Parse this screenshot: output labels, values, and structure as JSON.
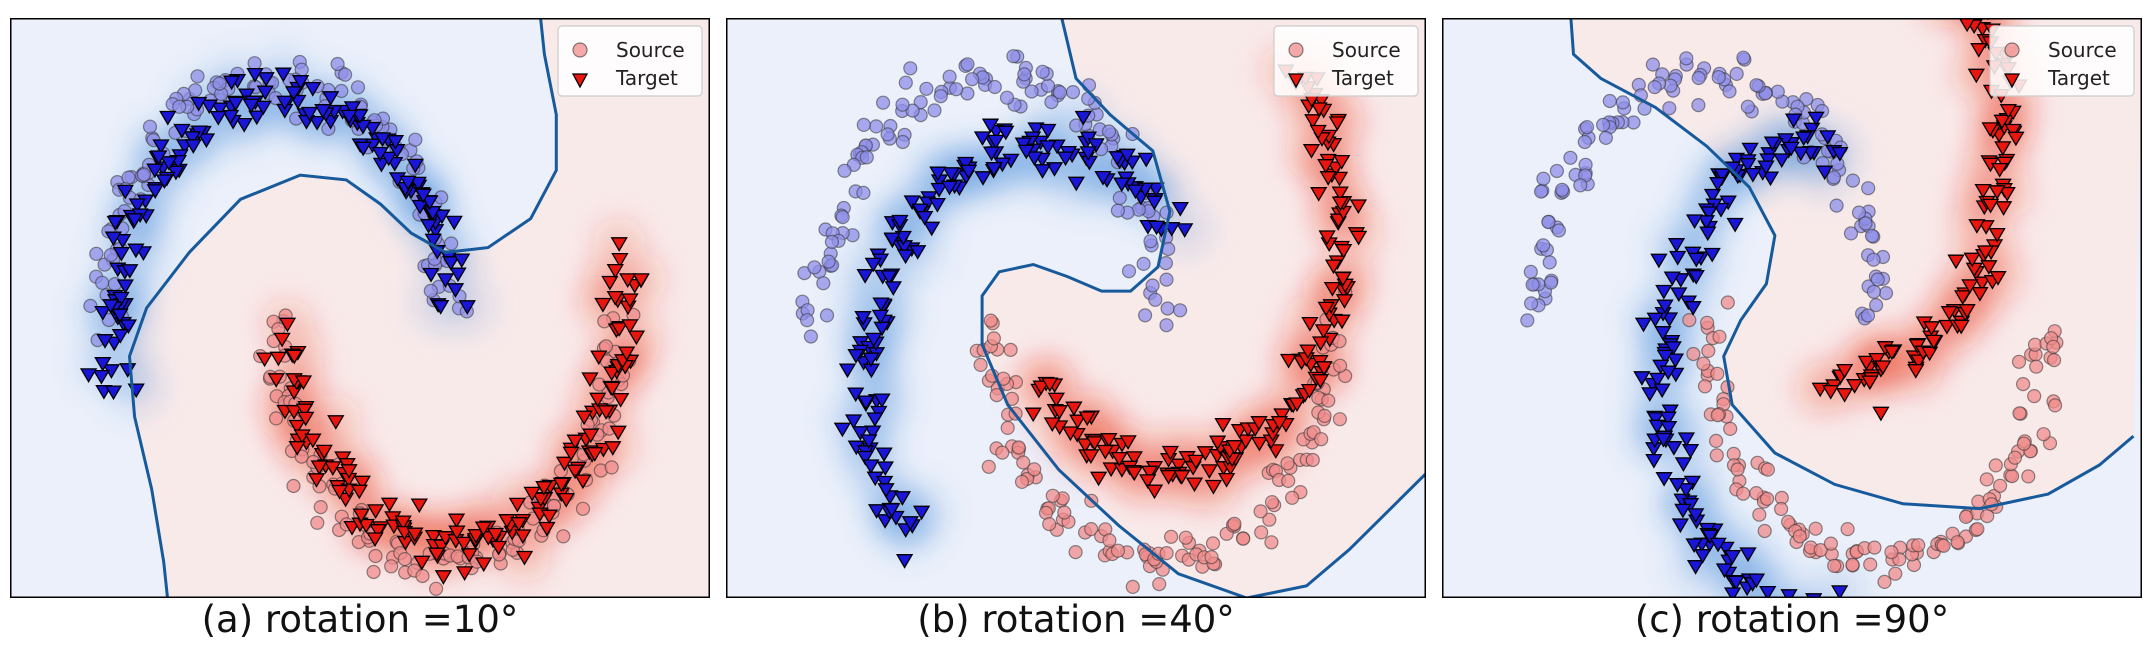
{
  "figure": {
    "captions": [
      "(a) rotation =10°",
      "(b) rotation =40°",
      "(c) rotation =90°"
    ]
  },
  "legend": {
    "source_label": "Source",
    "target_label": "Target"
  },
  "colors": {
    "source_class0": "#8f8fe8",
    "source_class1": "#f08c8c",
    "target_class0": "#1a16d8",
    "target_class1": "#e8160f",
    "decision_boundary": "#175a9c",
    "region_class0": "#ecf0fa",
    "region_class1": "#f9eaea",
    "density_class0": "#2b7fd1",
    "density_class1": "#e8200f"
  },
  "chart_data": [
    {
      "type": "scatter",
      "title": "(a) rotation =10°",
      "rotation_deg": 10,
      "xlabel": "",
      "ylabel": "",
      "axes_ticks": false,
      "xlim": [
        -1.55,
        2.55
      ],
      "ylim": [
        -1.15,
        1.25
      ],
      "legend_location": "top-right",
      "series": [
        {
          "name": "Source",
          "class": 0,
          "shape": "moon_upper",
          "marker": "circle"
        },
        {
          "name": "Source",
          "class": 1,
          "shape": "moon_lower",
          "marker": "circle"
        },
        {
          "name": "Target",
          "class": 0,
          "shape": "moon_upper_rotated",
          "marker": "triangle-down"
        },
        {
          "name": "Target",
          "class": 1,
          "shape": "moon_lower_rotated",
          "marker": "triangle-down"
        }
      ],
      "decision_boundary": [
        [
          1.55,
          1.3
        ],
        [
          1.58,
          1.1
        ],
        [
          1.65,
          0.85
        ],
        [
          1.65,
          0.62
        ],
        [
          1.5,
          0.42
        ],
        [
          1.25,
          0.3
        ],
        [
          1.0,
          0.28
        ],
        [
          0.8,
          0.36
        ],
        [
          0.62,
          0.48
        ],
        [
          0.42,
          0.58
        ],
        [
          0.15,
          0.6
        ],
        [
          -0.2,
          0.5
        ],
        [
          -0.5,
          0.28
        ],
        [
          -0.75,
          0.05
        ],
        [
          -0.85,
          -0.15
        ],
        [
          -0.82,
          -0.4
        ],
        [
          -0.72,
          -0.7
        ],
        [
          -0.65,
          -1.0
        ],
        [
          -0.62,
          -1.2
        ]
      ]
    },
    {
      "type": "scatter",
      "title": "(b) rotation =40°",
      "rotation_deg": 40,
      "xlabel": "",
      "ylabel": "",
      "axes_ticks": false,
      "xlim": [
        -1.55,
        2.55
      ],
      "ylim": [
        -1.15,
        1.25
      ],
      "legend_location": "top-right",
      "series": [
        {
          "name": "Source",
          "class": 0,
          "shape": "moon_upper",
          "marker": "circle"
        },
        {
          "name": "Source",
          "class": 1,
          "shape": "moon_lower",
          "marker": "circle"
        },
        {
          "name": "Target",
          "class": 0,
          "shape": "moon_upper_rotated",
          "marker": "triangle-down"
        },
        {
          "name": "Target",
          "class": 1,
          "shape": "moon_lower_rotated",
          "marker": "triangle-down"
        }
      ],
      "decision_boundary": [
        [
          0.4,
          1.3
        ],
        [
          0.5,
          1.0
        ],
        [
          0.7,
          0.85
        ],
        [
          0.95,
          0.7
        ],
        [
          1.05,
          0.45
        ],
        [
          0.98,
          0.22
        ],
        [
          0.82,
          0.12
        ],
        [
          0.65,
          0.12
        ],
        [
          0.45,
          0.18
        ],
        [
          0.25,
          0.23
        ],
        [
          0.05,
          0.2
        ],
        [
          -0.05,
          0.1
        ],
        [
          -0.05,
          -0.1
        ],
        [
          0.1,
          -0.35
        ],
        [
          0.4,
          -0.62
        ],
        [
          0.75,
          -0.85
        ],
        [
          1.1,
          -1.05
        ],
        [
          1.5,
          -1.15
        ],
        [
          1.85,
          -1.1
        ],
        [
          2.1,
          -0.95
        ],
        [
          2.6,
          -0.6
        ]
      ]
    },
    {
      "type": "scatter",
      "title": "(c) rotation =90°",
      "rotation_deg": 90,
      "xlabel": "",
      "ylabel": "",
      "axes_ticks": false,
      "xlim": [
        -1.55,
        2.55
      ],
      "ylim": [
        -1.15,
        1.25
      ],
      "legend_location": "top-right",
      "series": [
        {
          "name": "Source",
          "class": 0,
          "shape": "moon_upper",
          "marker": "circle"
        },
        {
          "name": "Source",
          "class": 1,
          "shape": "moon_lower",
          "marker": "circle"
        },
        {
          "name": "Target",
          "class": 0,
          "shape": "moon_upper_rotated",
          "marker": "triangle-down"
        },
        {
          "name": "Target",
          "class": 1,
          "shape": "moon_lower_rotated",
          "marker": "triangle-down"
        }
      ],
      "decision_boundary": [
        [
          -0.8,
          1.3
        ],
        [
          -0.78,
          1.1
        ],
        [
          -0.62,
          1.0
        ],
        [
          -0.3,
          0.88
        ],
        [
          0.0,
          0.72
        ],
        [
          0.25,
          0.55
        ],
        [
          0.4,
          0.35
        ],
        [
          0.35,
          0.15
        ],
        [
          0.2,
          0.0
        ],
        [
          0.1,
          -0.15
        ],
        [
          0.15,
          -0.35
        ],
        [
          0.4,
          -0.55
        ],
        [
          0.75,
          -0.68
        ],
        [
          1.15,
          -0.76
        ],
        [
          1.6,
          -0.78
        ],
        [
          2.0,
          -0.72
        ],
        [
          2.3,
          -0.6
        ],
        [
          2.5,
          -0.48
        ]
      ]
    }
  ]
}
